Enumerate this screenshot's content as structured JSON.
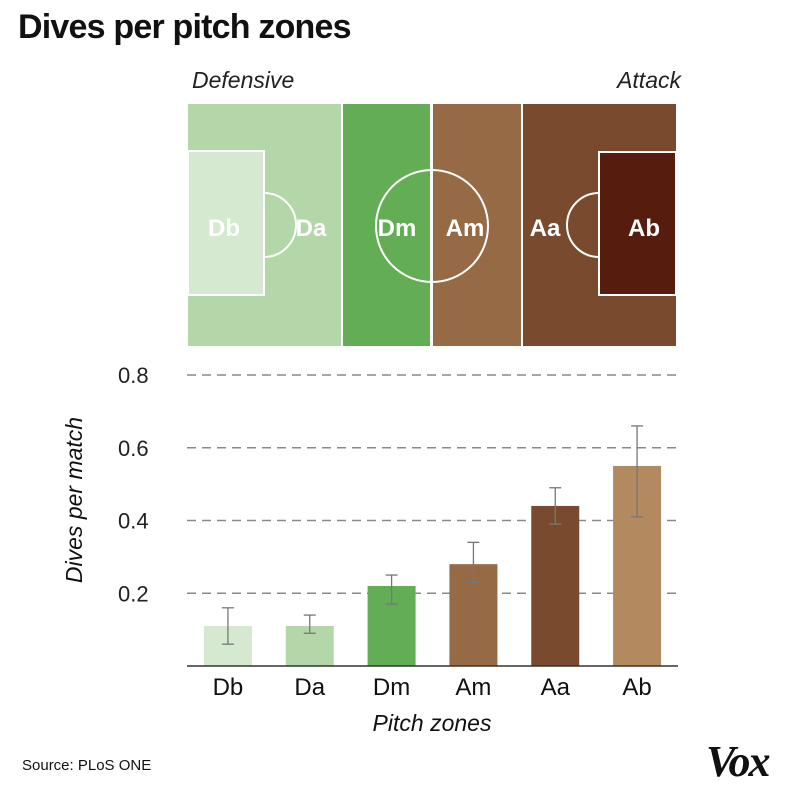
{
  "title": "Dives per pitch zones",
  "source": "Source: PLoS ONE",
  "logo": "Vox",
  "pitch": {
    "left_label": "Defensive",
    "right_label": "Attack",
    "zones": [
      {
        "code": "Db",
        "color": "#d4e9cf"
      },
      {
        "code": "Da",
        "color": "#b3d7a9"
      },
      {
        "code": "Dm",
        "color": "#63ad54"
      },
      {
        "code": "Am",
        "color": "#976a46"
      },
      {
        "code": "Aa",
        "color": "#7a4a2e"
      },
      {
        "code": "Ab",
        "color": "#561d0e"
      }
    ]
  },
  "chart_data": {
    "type": "bar",
    "title": "Dives per pitch zones",
    "categories": [
      "Db",
      "Da",
      "Dm",
      "Am",
      "Aa",
      "Ab"
    ],
    "values": [
      0.11,
      0.11,
      0.22,
      0.28,
      0.44,
      0.55
    ],
    "error_bars": [
      {
        "low": 0.06,
        "high": 0.16
      },
      {
        "low": 0.09,
        "high": 0.14
      },
      {
        "low": 0.17,
        "high": 0.25
      },
      {
        "low": 0.23,
        "high": 0.34
      },
      {
        "low": 0.39,
        "high": 0.49
      },
      {
        "low": 0.41,
        "high": 0.66
      }
    ],
    "colors": [
      "#d4e9cf",
      "#b3d7a9",
      "#63ad54",
      "#976a46",
      "#7a4a2e",
      "#b38a5f"
    ],
    "xlabel": "Pitch zones",
    "ylabel": "Dives per match",
    "ylim": [
      0,
      0.8
    ],
    "yticks": [
      0.2,
      0.4,
      0.6,
      0.8
    ],
    "ytick_labels": [
      "0.2",
      "0.4",
      "0.6",
      "0.8"
    ],
    "grid": true
  }
}
